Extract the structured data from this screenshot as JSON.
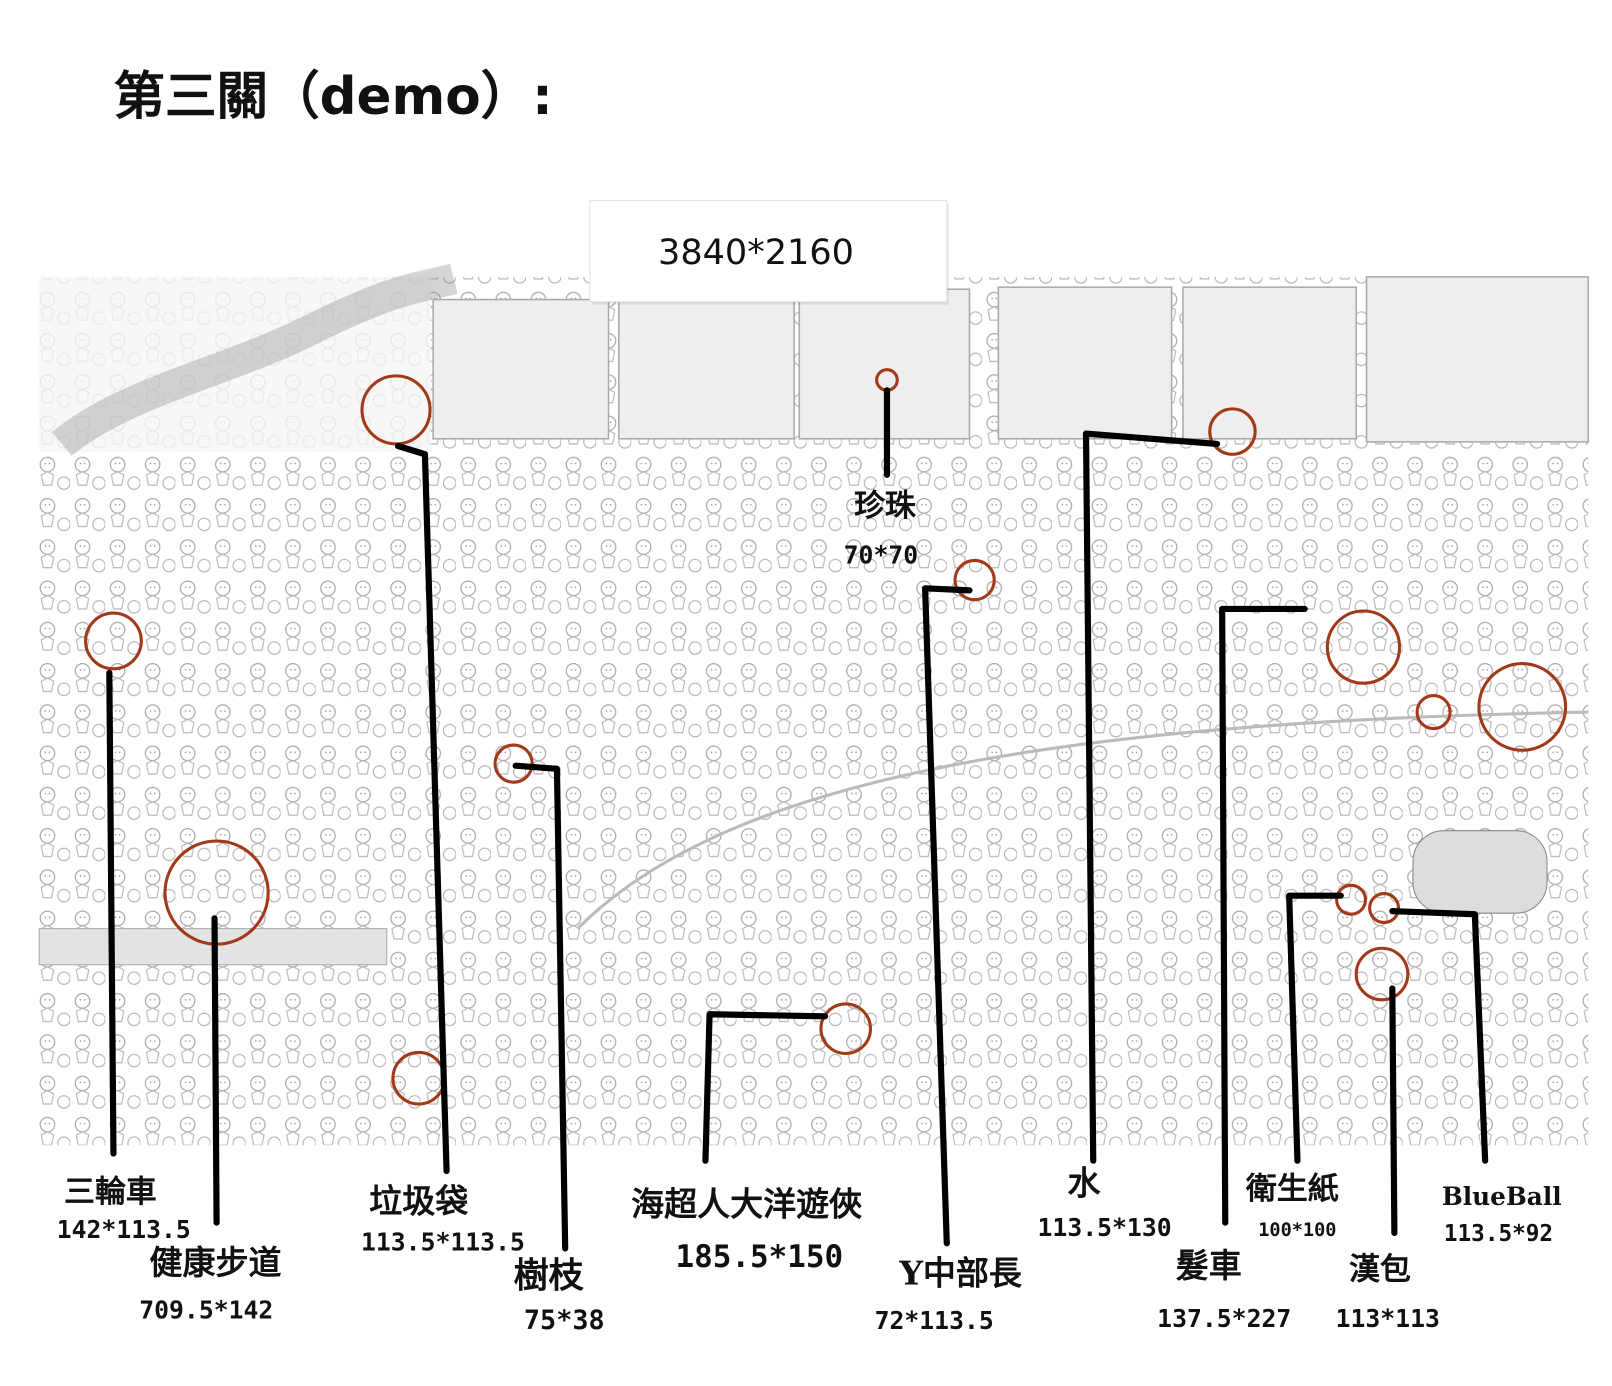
{
  "header": {
    "title": "第三關（demo）:"
  },
  "popup": {
    "text": "3840*2160"
  },
  "items": [
    {
      "label": "三輪車",
      "size": "142*113.5"
    },
    {
      "label": "健康步道",
      "size": "709.5*142"
    },
    {
      "label": "垃圾袋",
      "size": "113.5*113.5"
    },
    {
      "label": "樹枝",
      "size": "75*38"
    },
    {
      "label": "海超人大洋遊俠",
      "size": "185.5*150"
    },
    {
      "label": "珍珠",
      "size": "70*70"
    },
    {
      "label": "Y中部長",
      "size": "72*113.5"
    },
    {
      "label": "水",
      "size": "113.5*130"
    },
    {
      "label": "髮車",
      "size": "137.5*227"
    },
    {
      "label": "衛生紙",
      "size": "100*100"
    },
    {
      "label": "漢包",
      "size": "113*113"
    },
    {
      "label": "BlueBall",
      "size": "113.5*92"
    }
  ]
}
